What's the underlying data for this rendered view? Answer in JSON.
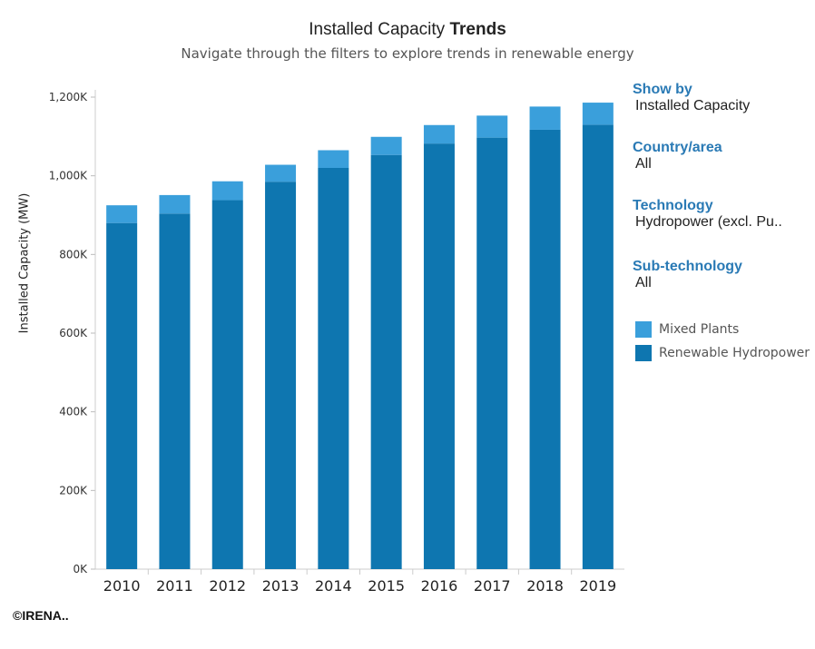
{
  "header": {
    "title_regular": "Installed Capacity",
    "title_bold": "Trends",
    "subtitle": "Navigate through the filters to explore trends in renewable energy"
  },
  "filters": [
    {
      "label": "Show by",
      "value": "Installed Capacity"
    },
    {
      "label": "Country/area",
      "value": "All"
    },
    {
      "label": "Technology",
      "value": "Hydropower (excl. Pu.."
    },
    {
      "label": "Sub-technology",
      "value": "All"
    }
  ],
  "footer": {
    "copyright": "©IRENA.."
  },
  "colors": {
    "mixed": "#3a9fdb",
    "renewable": "#0e76b0",
    "accent": "#2a7ab5"
  },
  "chart_data": {
    "type": "bar",
    "stacked": true,
    "ylabel": "Installed Capacity (MW)",
    "ylim": [
      0,
      1200000
    ],
    "yticks": [
      {
        "value": 0,
        "label": "0K"
      },
      {
        "value": 200000,
        "label": "200K"
      },
      {
        "value": 400000,
        "label": "400K"
      },
      {
        "value": 600000,
        "label": "600K"
      },
      {
        "value": 800000,
        "label": "800K"
      },
      {
        "value": 1000000,
        "label": "1,000K"
      },
      {
        "value": 1200000,
        "label": "1,200K"
      }
    ],
    "categories": [
      "2010",
      "2011",
      "2012",
      "2013",
      "2014",
      "2015",
      "2016",
      "2017",
      "2018",
      "2019"
    ],
    "series": [
      {
        "name": "Renewable Hydropower",
        "color": "#0e76b0",
        "values": [
          880000,
          904000,
          938000,
          985000,
          1020000,
          1053000,
          1082000,
          1097000,
          1117000,
          1130000
        ]
      },
      {
        "name": "Mixed Plants",
        "color": "#3a9fdb",
        "values": [
          45000,
          47000,
          48000,
          43000,
          45000,
          46000,
          47000,
          56000,
          59000,
          56000
        ]
      }
    ],
    "legend": {
      "placement": "right",
      "order": [
        "Mixed Plants",
        "Renewable Hydropower"
      ]
    }
  }
}
